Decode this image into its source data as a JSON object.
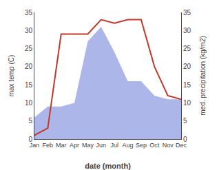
{
  "chart_data": {
    "type": "line",
    "categories": [
      "Jan",
      "Feb",
      "Mar",
      "Apr",
      "May",
      "Jun",
      "Jul",
      "Aug",
      "Sep",
      "Oct",
      "Nov",
      "Dec"
    ],
    "xlabel": "date (month)",
    "ylabel": "max temp (C)",
    "y2label": "med. precipitation (kg/m2)",
    "series": [
      {
        "type": "area",
        "color": "#adb6e8",
        "values": [
          6,
          9,
          9,
          10,
          27,
          31,
          24,
          16,
          16,
          12,
          11,
          11
        ]
      },
      {
        "type": "line",
        "color": "#c0392b",
        "axis": "y2",
        "values": [
          1,
          3,
          29,
          29,
          29,
          33,
          32,
          33,
          33,
          20,
          12,
          11
        ]
      }
    ],
    "ylim": [
      0,
      35
    ],
    "yticks": [
      0,
      5,
      10,
      15,
      20,
      25,
      30,
      35
    ],
    "y2lim": [
      0,
      35
    ],
    "y2ticks": [
      0,
      5,
      10,
      15,
      20,
      25,
      30,
      35
    ],
    "grid": false
  }
}
